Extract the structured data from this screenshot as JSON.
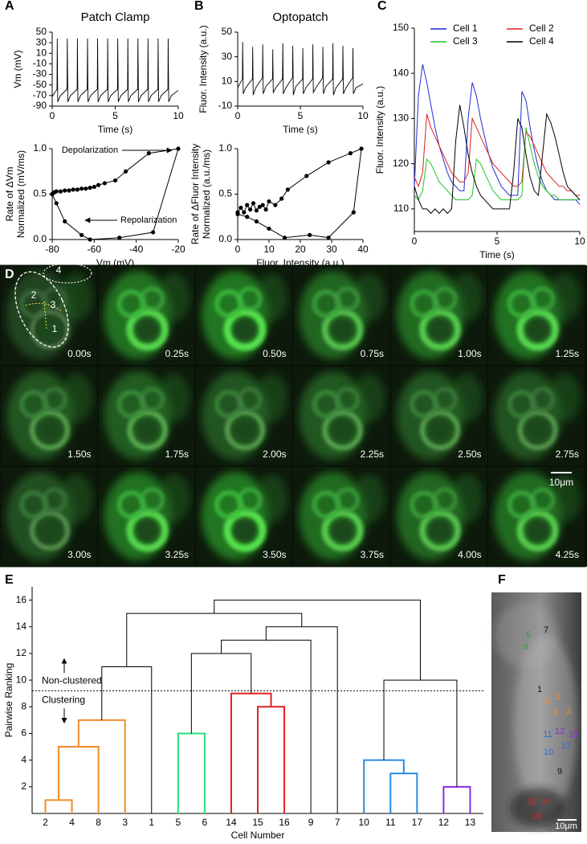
{
  "chart_data": [
    {
      "type": "line",
      "title": "Patch Clamp",
      "xlabel": "Time (s)",
      "ylabel": [
        "Vm (mV)"
      ],
      "color": "#000000",
      "x": [
        0,
        0.38,
        0.4,
        0.44,
        0.65,
        1.18,
        1.2,
        1.24,
        1.45,
        1.98,
        2.0,
        2.04,
        2.25,
        2.78,
        2.8,
        2.84,
        3.05,
        3.58,
        3.6,
        3.64,
        3.85,
        4.38,
        4.4,
        4.44,
        4.65,
        5.18,
        5.2,
        5.24,
        5.45,
        5.98,
        6.0,
        6.04,
        6.25,
        6.78,
        6.8,
        6.84,
        7.05,
        7.58,
        7.6,
        7.64,
        7.85,
        8.38,
        8.4,
        8.44,
        8.65,
        9.18,
        9.2,
        9.24,
        9.45,
        10
      ],
      "values": [
        -72,
        -58,
        38,
        -82,
        -70,
        -58,
        38,
        -82,
        -70,
        -58,
        38,
        -82,
        -70,
        -58,
        38,
        -82,
        -70,
        -58,
        38,
        -82,
        -70,
        -58,
        38,
        -82,
        -70,
        -58,
        38,
        -82,
        -70,
        -58,
        38,
        -82,
        -70,
        -58,
        38,
        -82,
        -70,
        -58,
        38,
        -82,
        -70,
        -58,
        38,
        -82,
        -70,
        -58,
        38,
        -82,
        -70,
        -60
      ],
      "xlim": [
        0,
        10
      ],
      "xticks": [
        0,
        5,
        10
      ],
      "ylim": [
        -90,
        50
      ],
      "yticks": [
        -90,
        -70,
        -50,
        -30,
        -10,
        10,
        30,
        50
      ]
    },
    {
      "type": "line",
      "markers": true,
      "xlabel": "Vm (mV)",
      "ylabel": [
        "Rate of ΔVm",
        "Normalized (mV/ms)"
      ],
      "color": "#000000",
      "annotations": [
        "Depolarization",
        "Repolarization"
      ],
      "x": [
        -80,
        -79,
        -78,
        -76,
        -74,
        -72,
        -70,
        -68,
        -66,
        -64,
        -62,
        -60,
        -58,
        -55,
        -50,
        -45,
        -34,
        -20,
        -32,
        -48,
        -62,
        -66,
        -74,
        -78,
        -80
      ],
      "values": [
        0.5,
        0.52,
        0.53,
        0.53,
        0.54,
        0.54,
        0.55,
        0.55,
        0.56,
        0.56,
        0.57,
        0.58,
        0.6,
        0.62,
        0.65,
        0.75,
        0.95,
        1.0,
        0.08,
        0.02,
        0.0,
        0.05,
        0.2,
        0.4,
        0.5
      ],
      "xlim": [
        -80,
        -20
      ],
      "xticks": [
        -80,
        -60,
        -40,
        -20
      ],
      "ylim": [
        0,
        1
      ],
      "yticks": [
        {
          "value": 0,
          "label": "0.0"
        },
        {
          "value": 0.5,
          "label": "0.5"
        },
        {
          "value": 1,
          "label": "1.0"
        }
      ]
    },
    {
      "type": "line",
      "title": "Optopatch",
      "xlabel": "Time (s)",
      "ylabel": [
        "Fluor. Intensity (a.u.)"
      ],
      "color": "#000000",
      "x": [
        0,
        0.38,
        0.4,
        0.44,
        0.65,
        1.18,
        1.2,
        1.24,
        1.45,
        1.98,
        2.0,
        2.04,
        2.25,
        2.78,
        2.8,
        2.84,
        3.05,
        3.58,
        3.6,
        3.64,
        3.85,
        4.38,
        4.4,
        4.44,
        4.65,
        5.18,
        5.2,
        5.24,
        5.45,
        5.98,
        6.0,
        6.04,
        6.25,
        6.78,
        6.8,
        6.84,
        7.05,
        7.58,
        7.6,
        7.64,
        7.85,
        8.38,
        8.4,
        8.44,
        8.65,
        9.18,
        9.2,
        9.24,
        9.45,
        10
      ],
      "values": [
        5,
        12,
        42,
        0,
        5,
        12,
        38,
        -1,
        5,
        13,
        40,
        0,
        6,
        12,
        36,
        1,
        5,
        12,
        41,
        0,
        5,
        13,
        39,
        -1,
        6,
        12,
        37,
        0,
        5,
        12,
        40,
        1,
        5,
        13,
        38,
        0,
        6,
        12,
        41,
        -1,
        5,
        12,
        39,
        0,
        5,
        13,
        37,
        0,
        5,
        8
      ],
      "xlim": [
        0,
        10
      ],
      "xticks": [
        0,
        5,
        10
      ],
      "ylim": [
        -10,
        50
      ],
      "yticks": [
        -10,
        10,
        30,
        50
      ]
    },
    {
      "type": "line",
      "markers": true,
      "xlabel": "Fluor. Intensity (a.u.)",
      "ylabel": [
        "Rate of ΔFluor Intensity",
        "Normalized (a.u./ms)"
      ],
      "color": "#000000",
      "x": [
        0,
        1,
        2,
        3,
        4,
        5,
        6,
        7,
        8,
        9,
        10,
        12,
        14,
        16,
        22,
        29,
        36,
        39.5,
        37,
        29,
        23,
        15,
        10,
        6,
        3,
        0
      ],
      "values": [
        0.3,
        0.35,
        0.3,
        0.38,
        0.33,
        0.4,
        0.32,
        0.36,
        0.38,
        0.33,
        0.42,
        0.38,
        0.45,
        0.55,
        0.7,
        0.85,
        0.95,
        1.0,
        0.3,
        0.02,
        0.05,
        0.02,
        0.12,
        0.2,
        0.25,
        0.28
      ],
      "xlim": [
        0,
        40
      ],
      "xticks": [
        0,
        10,
        20,
        30,
        40
      ],
      "ylim": [
        0,
        1
      ],
      "yticks": [
        {
          "value": 0,
          "label": "0.0"
        },
        {
          "value": 0.5,
          "label": "0.5"
        },
        {
          "value": 1,
          "label": "1.0"
        }
      ]
    },
    {
      "type": "multiline",
      "xlabel": "Time (s)",
      "ylabel": [
        "Fluor. Intensity (a.u.)"
      ],
      "x": [
        0,
        0.25,
        0.5,
        0.75,
        1,
        1.25,
        1.5,
        1.75,
        2,
        2.25,
        2.5,
        2.75,
        3,
        3.25,
        3.5,
        3.75,
        4,
        4.25,
        4.5,
        4.75,
        5,
        5.25,
        5.5,
        5.75,
        6,
        6.25,
        6.5,
        6.75,
        7,
        7.25,
        7.5,
        7.75,
        8,
        8.25,
        8.5,
        8.75,
        9,
        9.25,
        9.5,
        9.75,
        10
      ],
      "series": [
        {
          "name": "Cell 1",
          "color": "#1f2bd6",
          "values": [
            115,
            135,
            142,
            138,
            133,
            128,
            124,
            121,
            118,
            116,
            115,
            114,
            114,
            130,
            138,
            135,
            130,
            126,
            122,
            119,
            117,
            115,
            114,
            113,
            113,
            113,
            136,
            134,
            128,
            123,
            119,
            116,
            114,
            113,
            112,
            112,
            112,
            112,
            112,
            112,
            111
          ]
        },
        {
          "name": "Cell 2",
          "color": "#e02020",
          "values": [
            117,
            115,
            118,
            131,
            128,
            126,
            124,
            122,
            120,
            118,
            117,
            116,
            116,
            118,
            130,
            128,
            126,
            124,
            122,
            120,
            119,
            118,
            117,
            116,
            115,
            115,
            116,
            127,
            126,
            124,
            122,
            120,
            118,
            117,
            116,
            115,
            115,
            114,
            114,
            113,
            113
          ]
        },
        {
          "name": "Cell 3",
          "color": "#22c422",
          "values": [
            113,
            112,
            114,
            121,
            120,
            118,
            116,
            115,
            114,
            113,
            112,
            112,
            112,
            112,
            113,
            121,
            120,
            118,
            116,
            114,
            113,
            112,
            112,
            112,
            112,
            112,
            113,
            128,
            124,
            120,
            117,
            115,
            114,
            113,
            113,
            112,
            112,
            112,
            112,
            112,
            112
          ]
        },
        {
          "name": "Cell 4",
          "color": "#000000",
          "values": [
            115,
            112,
            110,
            110,
            109,
            110,
            109,
            110,
            109,
            110,
            125,
            133,
            128,
            122,
            118,
            115,
            113,
            112,
            111,
            110,
            110,
            110,
            110,
            110,
            118,
            130,
            128,
            122,
            117,
            114,
            113,
            122,
            131,
            129,
            126,
            122,
            118,
            115,
            114,
            113,
            112
          ]
        }
      ],
      "xlim": [
        0,
        10
      ],
      "xticks": [
        0,
        5,
        10
      ],
      "ylim": [
        105,
        150
      ],
      "yticks": [
        110,
        120,
        130,
        140,
        150
      ]
    },
    {
      "type": "dendrogram",
      "xlabel": "Cell Number",
      "ylabel": [
        "Pairwise Ranking"
      ],
      "categories": [
        "2",
        "4",
        "8",
        "3",
        "1",
        "5",
        "6",
        "14",
        "15",
        "16",
        "9",
        "7",
        "10",
        "11",
        "17",
        "12",
        "13"
      ],
      "merges": [
        {
          "children": [
            0,
            1
          ],
          "height": 1,
          "color": "#f28c28"
        },
        {
          "children": [
            17,
            2
          ],
          "height": 5,
          "color": "#f28c28"
        },
        {
          "children": [
            18,
            3
          ],
          "height": 7,
          "color": "#f28c28"
        },
        {
          "children": [
            19,
            4
          ],
          "height": 11,
          "color": "#000000"
        },
        {
          "children": [
            5,
            6
          ],
          "height": 6,
          "color": "#22e07a"
        },
        {
          "children": [
            8,
            9
          ],
          "height": 8,
          "color": "#e0201e"
        },
        {
          "children": [
            7,
            22
          ],
          "height": 9,
          "color": "#e0201e"
        },
        {
          "children": [
            21,
            23
          ],
          "height": 12,
          "color": "#000000"
        },
        {
          "children": [
            24,
            10
          ],
          "height": 13,
          "color": "#000000"
        },
        {
          "children": [
            25,
            11
          ],
          "height": 14,
          "color": "#000000"
        },
        {
          "children": [
            20,
            26
          ],
          "height": 15,
          "color": "#000000"
        },
        {
          "children": [
            13,
            14
          ],
          "height": 3,
          "color": "#2a8ae0"
        },
        {
          "children": [
            12,
            28
          ],
          "height": 4,
          "color": "#2a8ae0"
        },
        {
          "children": [
            15,
            16
          ],
          "height": 2,
          "color": "#8a2be2"
        },
        {
          "children": [
            29,
            30
          ],
          "height": 10,
          "color": "#000000"
        },
        {
          "children": [
            27,
            31
          ],
          "height": 16,
          "color": "#000000"
        }
      ],
      "threshold": 9.2,
      "annotations": [
        "Non-clustered",
        "Clustering"
      ],
      "ylim": [
        0,
        17
      ],
      "yticks": [
        2,
        4,
        6,
        8,
        10,
        12,
        14,
        16
      ]
    }
  ],
  "panel_labels": [
    "A",
    "B",
    "C",
    "D",
    "E",
    "F"
  ],
  "panel_d": {
    "timestamps": [
      "0.00s",
      "0.25s",
      "0.50s",
      "0.75s",
      "1.00s",
      "1.25s",
      "1.50s",
      "1.75s",
      "2.00s",
      "2.25s",
      "2.50s",
      "2.75s",
      "3.00s",
      "3.25s",
      "3.50s",
      "3.75s",
      "4.00s",
      "4.25s"
    ],
    "cell_labels": [
      "1",
      "2",
      "3",
      "4"
    ],
    "scale_bar": "10μm"
  },
  "panel_f": {
    "labels": [
      {
        "text": "5",
        "color": "#2a9d3a"
      },
      {
        "text": "6",
        "color": "#2a9d3a"
      },
      {
        "text": "7",
        "color": "#111111"
      },
      {
        "text": "1",
        "color": "#111111"
      },
      {
        "text": "2",
        "color": "#f28c28"
      },
      {
        "text": "8",
        "color": "#f28c28"
      },
      {
        "text": "4",
        "color": "#f28c28"
      },
      {
        "text": "3",
        "color": "#f28c28"
      },
      {
        "text": "11",
        "color": "#2a6ae0"
      },
      {
        "text": "12",
        "color": "#8a2be2"
      },
      {
        "text": "13",
        "color": "#8a2be2"
      },
      {
        "text": "10",
        "color": "#2a6ae0"
      },
      {
        "text": "17",
        "color": "#2a6ae0"
      },
      {
        "text": "9",
        "color": "#111111"
      },
      {
        "text": "15",
        "color": "#e0201e"
      },
      {
        "text": "14",
        "color": "#e0201e"
      },
      {
        "text": "16",
        "color": "#e0201e"
      }
    ],
    "scale_bar": "10μm"
  }
}
